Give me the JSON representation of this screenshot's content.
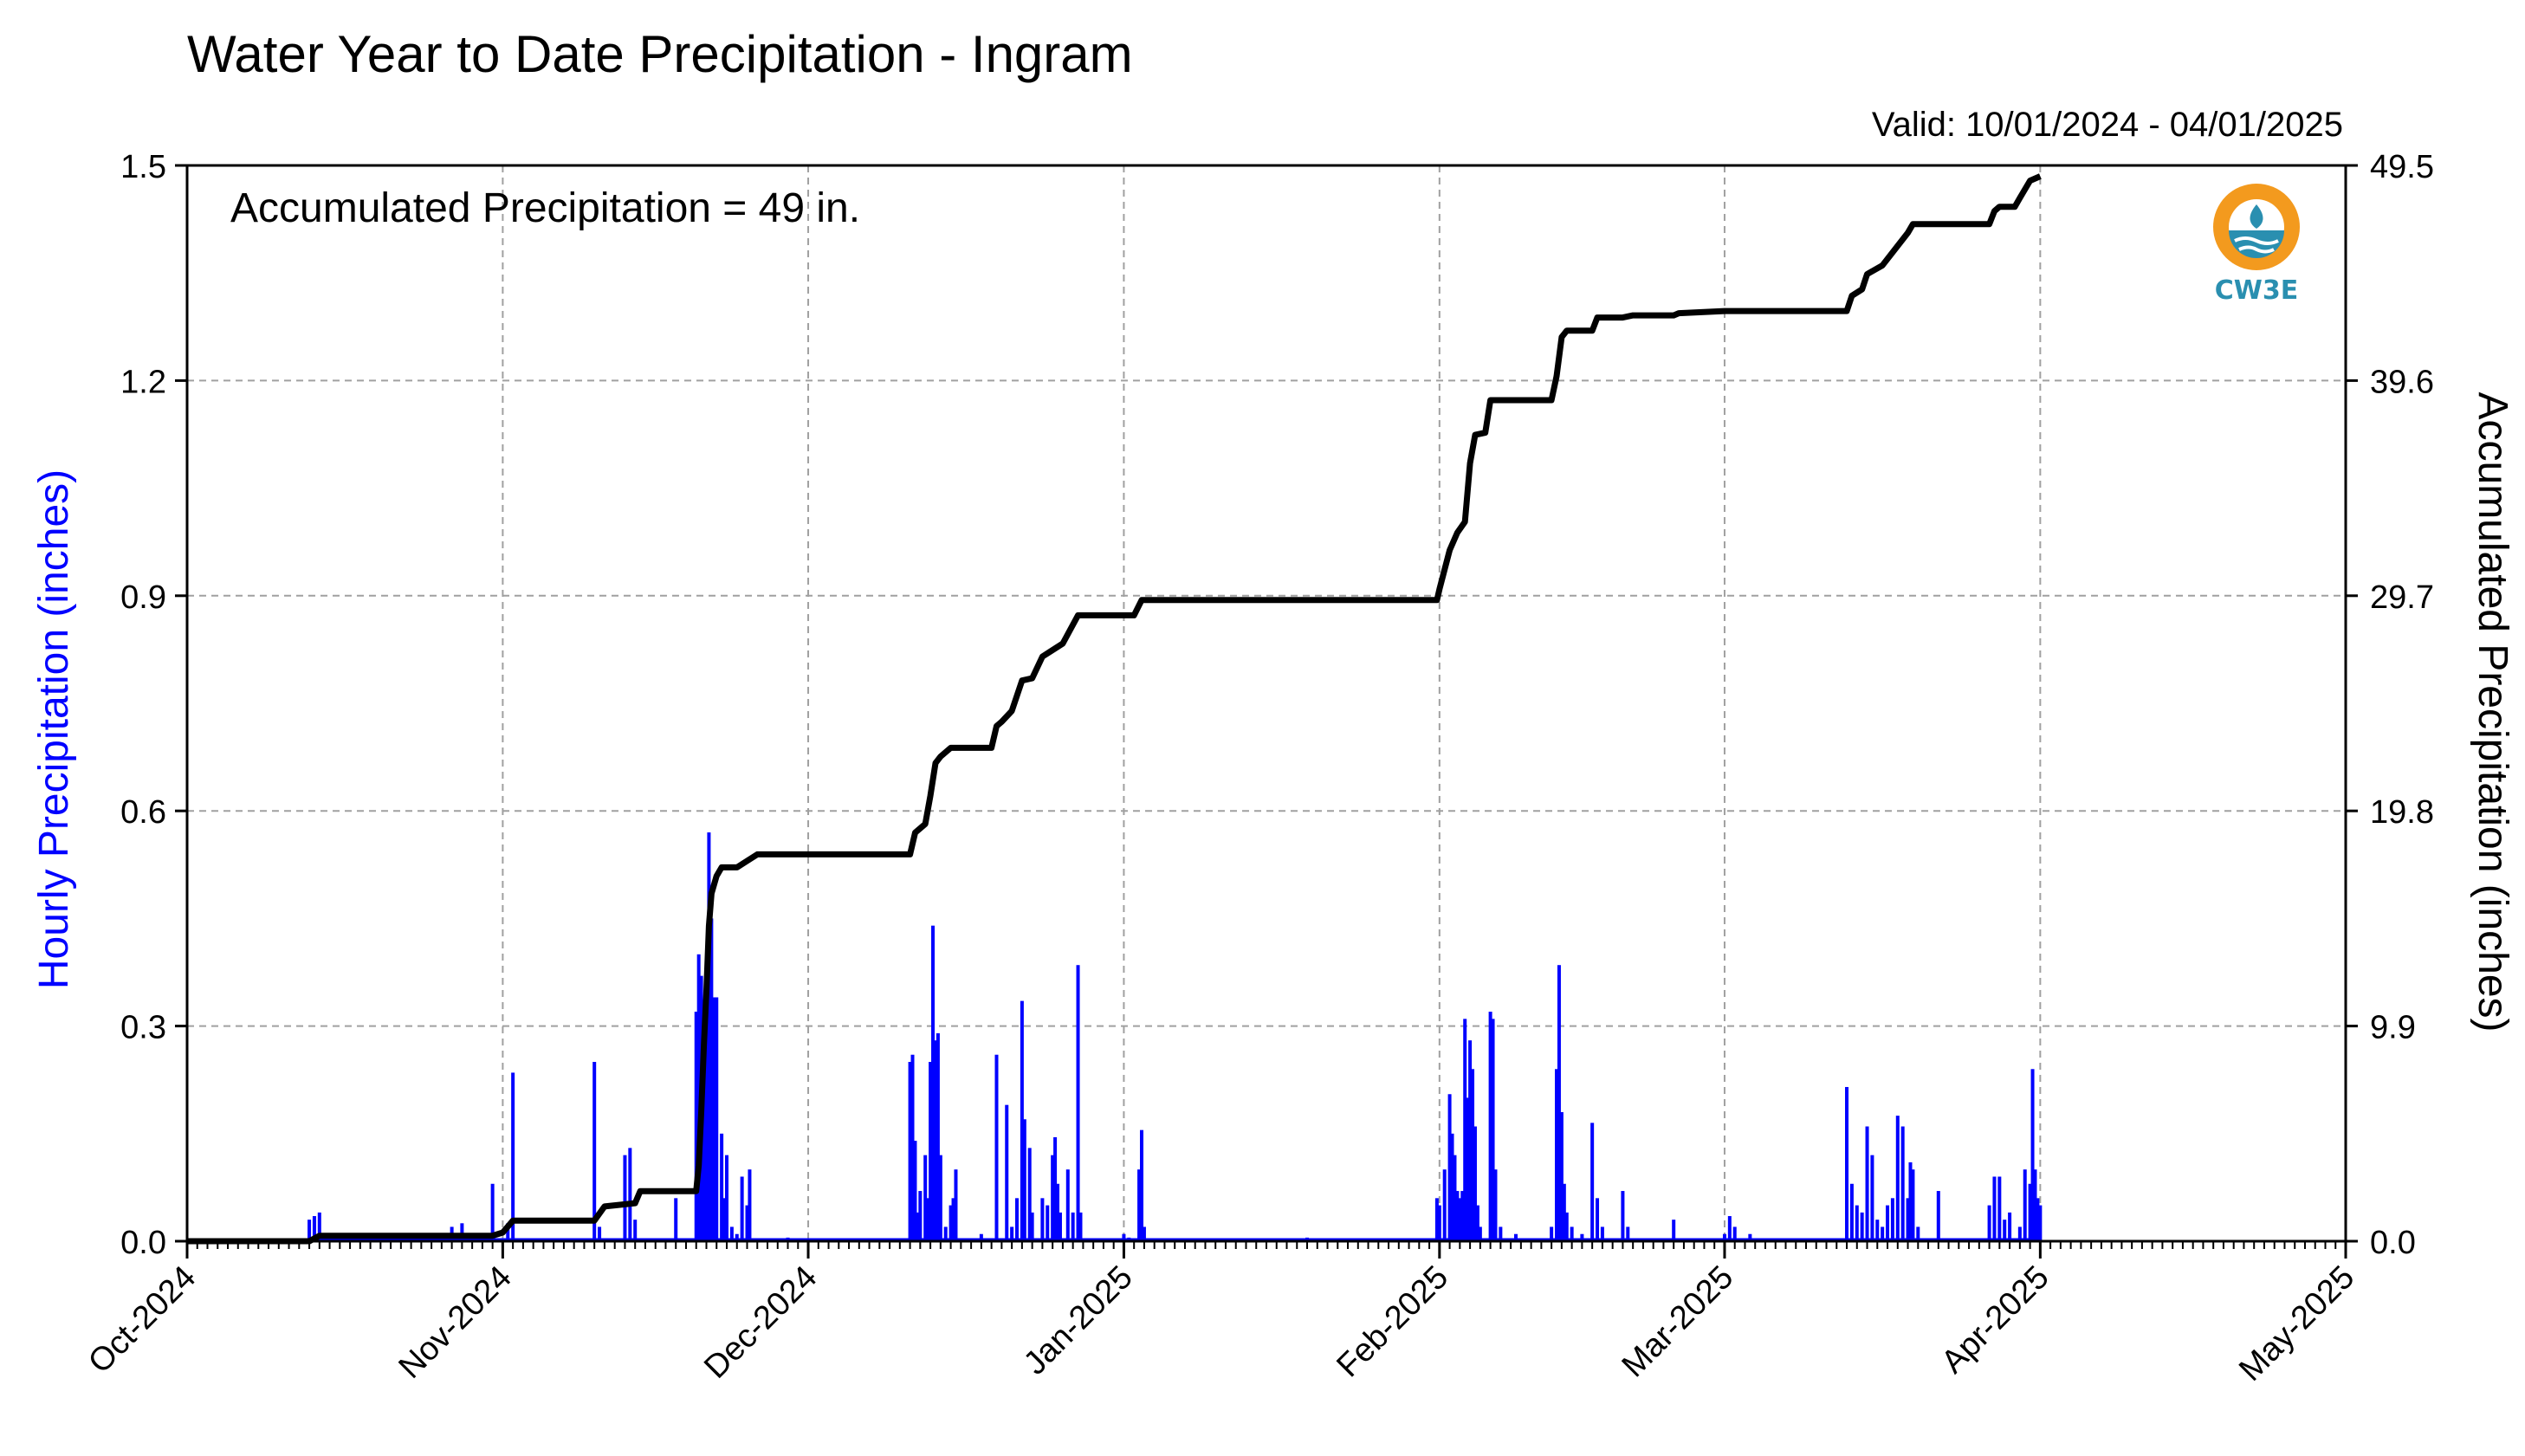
{
  "title": "Water Year to Date Precipitation - Ingram",
  "valid_text": "Valid: 10/01/2024 - 04/01/2025",
  "logo_text": "CW3E",
  "colors": {
    "hourly": "#0000ff",
    "accumulated": "#000000",
    "grid": "#a0a0a0",
    "logo_orange": "#f39a1e",
    "logo_blue": "#2a8fb0"
  },
  "chart_data": {
    "type": "bar",
    "annotation": "Accumulated Precipitation = 49 in.",
    "x_axis": {
      "type": "date",
      "range": [
        "2024-10-01",
        "2025-05-01"
      ],
      "tick_labels": [
        "Oct-2024",
        "Nov-2024",
        "Dec-2024",
        "Jan-2025",
        "Feb-2025",
        "Mar-2025",
        "Apr-2025",
        "May-2025"
      ],
      "tick_dates": [
        "2024-10-01",
        "2024-11-01",
        "2024-12-01",
        "2025-01-01",
        "2025-02-01",
        "2025-03-01",
        "2025-04-01",
        "2025-05-01"
      ],
      "minor_ticks": "daily"
    },
    "y_left": {
      "label": "Hourly Precipitation (inches)",
      "range": [
        0,
        1.5
      ],
      "tick_labels": [
        "0.0",
        "0.3",
        "0.6",
        "0.9",
        "1.2",
        "1.5"
      ]
    },
    "y_right": {
      "label": "Accumulated Precipitation (inches)",
      "range": [
        0,
        49.5
      ],
      "tick_labels": [
        "0.0",
        "9.9",
        "19.8",
        "29.7",
        "39.6",
        "49.5"
      ]
    },
    "grid": true,
    "hourly_series": [
      [
        "2024-10-13",
        0.03
      ],
      [
        "2024-10-13T12",
        0.035
      ],
      [
        "2024-10-14",
        0.04
      ],
      [
        "2024-10-27",
        0.02
      ],
      [
        "2024-10-28",
        0.025
      ],
      [
        "2024-10-31",
        0.08
      ],
      [
        "2024-11-01T12",
        0.025
      ],
      [
        "2024-11-02",
        0.235
      ],
      [
        "2024-11-10",
        0.25
      ],
      [
        "2024-11-10T12",
        0.02
      ],
      [
        "2024-11-13",
        0.12
      ],
      [
        "2024-11-13T12",
        0.13
      ],
      [
        "2024-11-14",
        0.03
      ],
      [
        "2024-11-18",
        0.06
      ],
      [
        "2024-11-20",
        0.32
      ],
      [
        "2024-11-20T06",
        0.4
      ],
      [
        "2024-11-20T12",
        0.37
      ],
      [
        "2024-11-20T18",
        0.25
      ],
      [
        "2024-11-21",
        0.29
      ],
      [
        "2024-11-21T06",
        0.57
      ],
      [
        "2024-11-21T12",
        0.45
      ],
      [
        "2024-11-21T18",
        0.34
      ],
      [
        "2024-11-22",
        0.34
      ],
      [
        "2024-11-22T12",
        0.15
      ],
      [
        "2024-11-22T18",
        0.06
      ],
      [
        "2024-11-23",
        0.12
      ],
      [
        "2024-11-23T12",
        0.02
      ],
      [
        "2024-11-24",
        0.01
      ],
      [
        "2024-11-24T12",
        0.09
      ],
      [
        "2024-11-25",
        0.05
      ],
      [
        "2024-11-25T06",
        0.1
      ],
      [
        "2024-11-29",
        0.005
      ],
      [
        "2024-12-11",
        0.25
      ],
      [
        "2024-12-11T06",
        0.26
      ],
      [
        "2024-12-11T12",
        0.14
      ],
      [
        "2024-12-11T18",
        0.04
      ],
      [
        "2024-12-12",
        0.07
      ],
      [
        "2024-12-12T12",
        0.12
      ],
      [
        "2024-12-12T18",
        0.06
      ],
      [
        "2024-12-13",
        0.25
      ],
      [
        "2024-12-13T06",
        0.44
      ],
      [
        "2024-12-13T12",
        0.28
      ],
      [
        "2024-12-13T18",
        0.29
      ],
      [
        "2024-12-14",
        0.12
      ],
      [
        "2024-12-14T12",
        0.02
      ],
      [
        "2024-12-15",
        0.05
      ],
      [
        "2024-12-15T06",
        0.06
      ],
      [
        "2024-12-15T12",
        0.1
      ],
      [
        "2024-12-18",
        0.01
      ],
      [
        "2024-12-19T12",
        0.26
      ],
      [
        "2024-12-20T12",
        0.19
      ],
      [
        "2024-12-21",
        0.02
      ],
      [
        "2024-12-21T12",
        0.06
      ],
      [
        "2024-12-22",
        0.335
      ],
      [
        "2024-12-22T06",
        0.17
      ],
      [
        "2024-12-22T18",
        0.13
      ],
      [
        "2024-12-23",
        0.04
      ],
      [
        "2024-12-24",
        0.06
      ],
      [
        "2024-12-24T12",
        0.05
      ],
      [
        "2024-12-25",
        0.12
      ],
      [
        "2024-12-25T06",
        0.145
      ],
      [
        "2024-12-25T12",
        0.08
      ],
      [
        "2024-12-25T18",
        0.04
      ],
      [
        "2024-12-26T12",
        0.1
      ],
      [
        "2024-12-27",
        0.04
      ],
      [
        "2024-12-27T12",
        0.385
      ],
      [
        "2024-12-27T18",
        0.04
      ],
      [
        "2025-01-01",
        0.01
      ],
      [
        "2025-01-01T12",
        0.005
      ],
      [
        "2025-01-02T12",
        0.1
      ],
      [
        "2025-01-02T18",
        0.155
      ],
      [
        "2025-01-03",
        0.02
      ],
      [
        "2025-01-19",
        0.005
      ],
      [
        "2025-01-31T18",
        0.06
      ],
      [
        "2025-02-01",
        0.05
      ],
      [
        "2025-02-01T12",
        0.1
      ],
      [
        "2025-02-02",
        0.205
      ],
      [
        "2025-02-02T06",
        0.15
      ],
      [
        "2025-02-02T12",
        0.12
      ],
      [
        "2025-02-02T18",
        0.07
      ],
      [
        "2025-02-03",
        0.06
      ],
      [
        "2025-02-03T06",
        0.07
      ],
      [
        "2025-02-03T12",
        0.31
      ],
      [
        "2025-02-03T18",
        0.2
      ],
      [
        "2025-02-04",
        0.28
      ],
      [
        "2025-02-04T06",
        0.24
      ],
      [
        "2025-02-04T12",
        0.16
      ],
      [
        "2025-02-04T18",
        0.05
      ],
      [
        "2025-02-05",
        0.02
      ],
      [
        "2025-02-06",
        0.32
      ],
      [
        "2025-02-06T06",
        0.31
      ],
      [
        "2025-02-06T12",
        0.1
      ],
      [
        "2025-02-07",
        0.02
      ],
      [
        "2025-02-08T12",
        0.01
      ],
      [
        "2025-02-12",
        0.02
      ],
      [
        "2025-02-12T12",
        0.24
      ],
      [
        "2025-02-12T18",
        0.385
      ],
      [
        "2025-02-13",
        0.18
      ],
      [
        "2025-02-13T06",
        0.08
      ],
      [
        "2025-02-13T12",
        0.04
      ],
      [
        "2025-02-14",
        0.02
      ],
      [
        "2025-02-15",
        0.01
      ],
      [
        "2025-02-16",
        0.165
      ],
      [
        "2025-02-16T12",
        0.06
      ],
      [
        "2025-02-17",
        0.02
      ],
      [
        "2025-02-19",
        0.07
      ],
      [
        "2025-02-19T12",
        0.02
      ],
      [
        "2025-02-24",
        0.03
      ],
      [
        "2025-03-01",
        0.01
      ],
      [
        "2025-03-01T12",
        0.035
      ],
      [
        "2025-03-02",
        0.02
      ],
      [
        "2025-03-03T12",
        0.01
      ],
      [
        "2025-03-13",
        0.215
      ],
      [
        "2025-03-13T12",
        0.08
      ],
      [
        "2025-03-14",
        0.05
      ],
      [
        "2025-03-14T12",
        0.04
      ],
      [
        "2025-03-15",
        0.16
      ],
      [
        "2025-03-15T12",
        0.12
      ],
      [
        "2025-03-16",
        0.03
      ],
      [
        "2025-03-16T12",
        0.02
      ],
      [
        "2025-03-17",
        0.05
      ],
      [
        "2025-03-17T12",
        0.06
      ],
      [
        "2025-03-18",
        0.175
      ],
      [
        "2025-03-18T12",
        0.16
      ],
      [
        "2025-03-19",
        0.06
      ],
      [
        "2025-03-19T06",
        0.11
      ],
      [
        "2025-03-19T12",
        0.1
      ],
      [
        "2025-03-20",
        0.02
      ],
      [
        "2025-03-22",
        0.07
      ],
      [
        "2025-03-27",
        0.05
      ],
      [
        "2025-03-27T12",
        0.09
      ],
      [
        "2025-03-28",
        0.09
      ],
      [
        "2025-03-28T12",
        0.03
      ],
      [
        "2025-03-29",
        0.04
      ],
      [
        "2025-03-30",
        0.02
      ],
      [
        "2025-03-30T12",
        0.1
      ],
      [
        "2025-03-31",
        0.08
      ],
      [
        "2025-03-31T06",
        0.24
      ],
      [
        "2025-03-31T12",
        0.1
      ],
      [
        "2025-03-31T18",
        0.06
      ],
      [
        "2025-04-01",
        0.05
      ]
    ],
    "accumulated_series": [
      [
        "2024-10-01",
        0.0
      ],
      [
        "2024-10-13",
        0.0
      ],
      [
        "2024-10-14",
        0.25
      ],
      [
        "2024-10-31",
        0.25
      ],
      [
        "2024-11-01",
        0.4
      ],
      [
        "2024-11-02",
        0.95
      ],
      [
        "2024-11-10",
        0.95
      ],
      [
        "2024-11-11",
        1.6
      ],
      [
        "2024-11-14",
        1.75
      ],
      [
        "2024-11-14T12",
        2.3
      ],
      [
        "2024-11-20",
        2.3
      ],
      [
        "2024-11-20T06",
        3.5
      ],
      [
        "2024-11-20T12",
        6.0
      ],
      [
        "2024-11-20T18",
        9.0
      ],
      [
        "2024-11-21",
        11.5
      ],
      [
        "2024-11-21T06",
        14.5
      ],
      [
        "2024-11-21T12",
        16.0
      ],
      [
        "2024-11-22",
        16.8
      ],
      [
        "2024-11-22T12",
        17.2
      ],
      [
        "2024-11-24",
        17.2
      ],
      [
        "2024-11-25",
        17.5
      ],
      [
        "2024-11-26",
        17.8
      ],
      [
        "2024-12-11",
        17.8
      ],
      [
        "2024-12-11T12",
        18.8
      ],
      [
        "2024-12-12T12",
        19.2
      ],
      [
        "2024-12-13",
        20.5
      ],
      [
        "2024-12-13T12",
        22.0
      ],
      [
        "2024-12-14",
        22.3
      ],
      [
        "2024-12-15",
        22.7
      ],
      [
        "2024-12-19",
        22.7
      ],
      [
        "2024-12-19T12",
        23.7
      ],
      [
        "2024-12-20",
        23.9
      ],
      [
        "2024-12-21",
        24.4
      ],
      [
        "2024-12-22",
        25.8
      ],
      [
        "2024-12-23",
        25.9
      ],
      [
        "2024-12-24",
        26.9
      ],
      [
        "2024-12-25",
        27.2
      ],
      [
        "2024-12-26",
        27.5
      ],
      [
        "2024-12-27T12",
        28.8
      ],
      [
        "2025-01-02",
        28.8
      ],
      [
        "2025-01-02T18",
        29.5
      ],
      [
        "2025-01-31T18",
        29.5
      ],
      [
        "2025-02-01",
        30.0
      ],
      [
        "2025-02-02",
        31.8
      ],
      [
        "2025-02-02T18",
        32.6
      ],
      [
        "2025-02-03T12",
        33.1
      ],
      [
        "2025-02-04",
        35.8
      ],
      [
        "2025-02-04T12",
        37.1
      ],
      [
        "2025-02-05T12",
        37.2
      ],
      [
        "2025-02-06",
        38.7
      ],
      [
        "2025-02-12",
        38.7
      ],
      [
        "2025-02-12T12",
        39.8
      ],
      [
        "2025-02-13",
        41.6
      ],
      [
        "2025-02-13T12",
        41.9
      ],
      [
        "2025-02-16",
        41.9
      ],
      [
        "2025-02-16T12",
        42.5
      ],
      [
        "2025-02-19",
        42.5
      ],
      [
        "2025-02-20",
        42.6
      ],
      [
        "2025-02-24",
        42.6
      ],
      [
        "2025-02-24T12",
        42.7
      ],
      [
        "2025-03-01",
        42.8
      ],
      [
        "2025-03-13",
        42.8
      ],
      [
        "2025-03-13T12",
        43.5
      ],
      [
        "2025-03-14T12",
        43.8
      ],
      [
        "2025-03-15",
        44.5
      ],
      [
        "2025-03-16T12",
        44.9
      ],
      [
        "2025-03-18",
        45.8
      ],
      [
        "2025-03-19",
        46.4
      ],
      [
        "2025-03-19T12",
        46.8
      ],
      [
        "2025-03-27",
        46.8
      ],
      [
        "2025-03-27T12",
        47.4
      ],
      [
        "2025-03-28",
        47.6
      ],
      [
        "2025-03-29T12",
        47.6
      ],
      [
        "2025-03-30",
        48.0
      ],
      [
        "2025-03-31",
        48.8
      ],
      [
        "2025-04-01",
        49.0
      ]
    ]
  }
}
